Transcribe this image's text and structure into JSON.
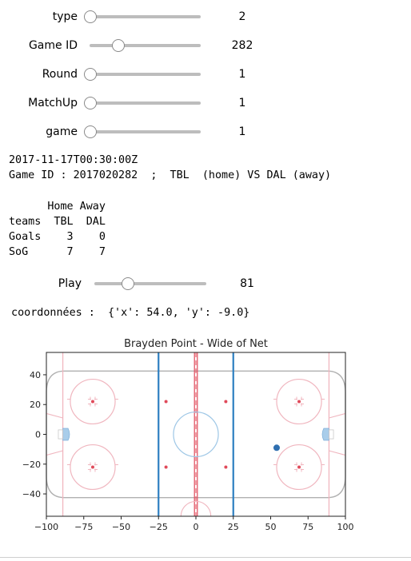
{
  "widgets": {
    "type": {
      "label": "type",
      "value": "2",
      "fraction": 0.0
    },
    "game_id": {
      "label": "Game ID",
      "value": "282",
      "fraction": 0.23
    },
    "round": {
      "label": "Round",
      "value": "1",
      "fraction": 0.0
    },
    "matchup": {
      "label": "MatchUp",
      "value": "1",
      "fraction": 0.0
    },
    "game": {
      "label": "game",
      "value": "1",
      "fraction": 0.0
    },
    "play": {
      "label": "Play",
      "value": "81",
      "fraction": 0.28
    }
  },
  "output": {
    "datetime": "2017-11-17T00:30:00Z",
    "game_line": "Game ID : 2017020282  ;  TBL  (home) VS DAL (away)",
    "table_lines": [
      "      Home Away",
      "teams  TBL  DAL",
      "Goals    3    0",
      "SoG      7    7"
    ],
    "coords": " coordonnées :  {'x': 54.0, 'y': -9.0}"
  },
  "chart_data": {
    "type": "scatter",
    "title": "Brayden Point - Wide of Net",
    "xlim": [
      -100,
      100
    ],
    "ylim": [
      -55,
      55
    ],
    "xticks": [
      "−100",
      "−75",
      "−50",
      "−25",
      "0",
      "25",
      "50",
      "75",
      "100"
    ],
    "xtick_values": [
      -100,
      -75,
      -50,
      -25,
      0,
      25,
      50,
      75,
      100
    ],
    "yticks": [
      "40",
      "20",
      "0",
      "−20",
      "−40"
    ],
    "ytick_values": [
      40,
      20,
      0,
      -20,
      -40
    ],
    "points": [
      {
        "x": 54.0,
        "y": -9.0
      }
    ],
    "colors": {
      "point": "#2f6fb0",
      "blue_line": "#2d7fc1",
      "red": "#e04a5a",
      "crease": "#a9cdea"
    }
  }
}
